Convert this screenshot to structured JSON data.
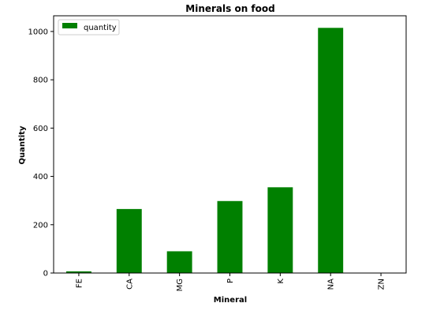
{
  "chart_data": {
    "type": "bar",
    "title": "Minerals on food",
    "xlabel": "Mineral",
    "ylabel": "Quantity",
    "categories": [
      "FE",
      "CA",
      "MG",
      "P",
      "K",
      "NA",
      "ZN"
    ],
    "series": [
      {
        "name": "quantity",
        "values": [
          7,
          265,
          90,
          298,
          355,
          1015,
          0
        ],
        "color": "#008000"
      }
    ],
    "ylim": [
      0,
      1065
    ],
    "yticks": [
      0,
      200,
      400,
      600,
      800,
      1000
    ],
    "grid": false,
    "legend_position": "top-left"
  }
}
